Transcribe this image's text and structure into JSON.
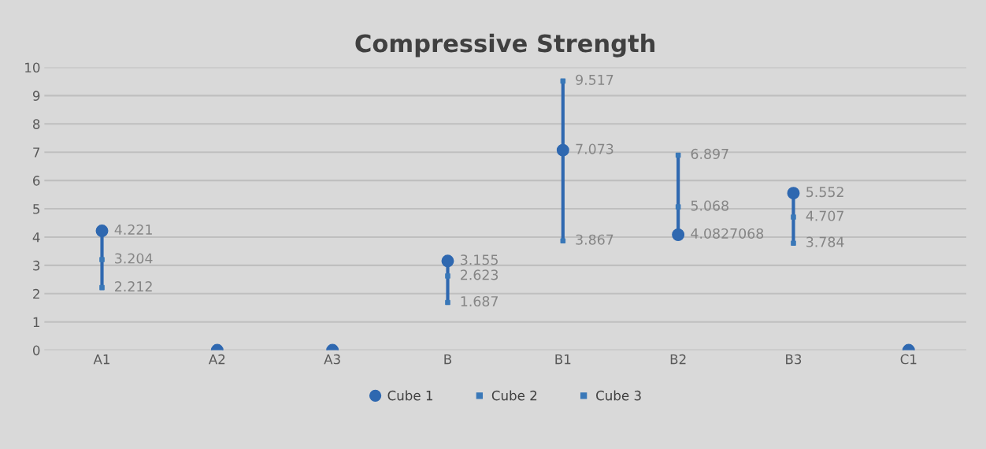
{
  "chart_data": {
    "type": "scatter",
    "title": "Compressive Strength",
    "categories": [
      "A1",
      "A2",
      "A3",
      "B",
      "B1",
      "B2",
      "B3",
      "C1"
    ],
    "series": [
      {
        "name": "Cube 1",
        "color": "#2f68b0",
        "values": [
          4.221,
          0,
          0,
          3.155,
          7.073,
          4.0827068,
          5.552,
          0
        ],
        "value_labels": [
          "4.221",
          null,
          null,
          "3.155",
          "7.073",
          "4.0827068",
          "5.552",
          null
        ],
        "marker": "circle"
      },
      {
        "name": "Cube 2",
        "color": "#3a78b8",
        "values": [
          3.204,
          null,
          null,
          2.623,
          9.517,
          6.897,
          4.707,
          null
        ],
        "data_labels": true,
        "marker": "square"
      },
      {
        "name": "Cube 3",
        "color": "#3a78b8",
        "values": [
          2.212,
          null,
          null,
          1.687,
          3.867,
          5.068,
          3.784,
          null
        ],
        "data_labels": true,
        "marker": "square"
      }
    ],
    "ylim": [
      0,
      10
    ],
    "yticks": [
      0,
      1,
      2,
      3,
      4,
      5,
      6,
      7,
      8,
      9,
      10
    ],
    "grid": "y",
    "legend": "bottom"
  }
}
